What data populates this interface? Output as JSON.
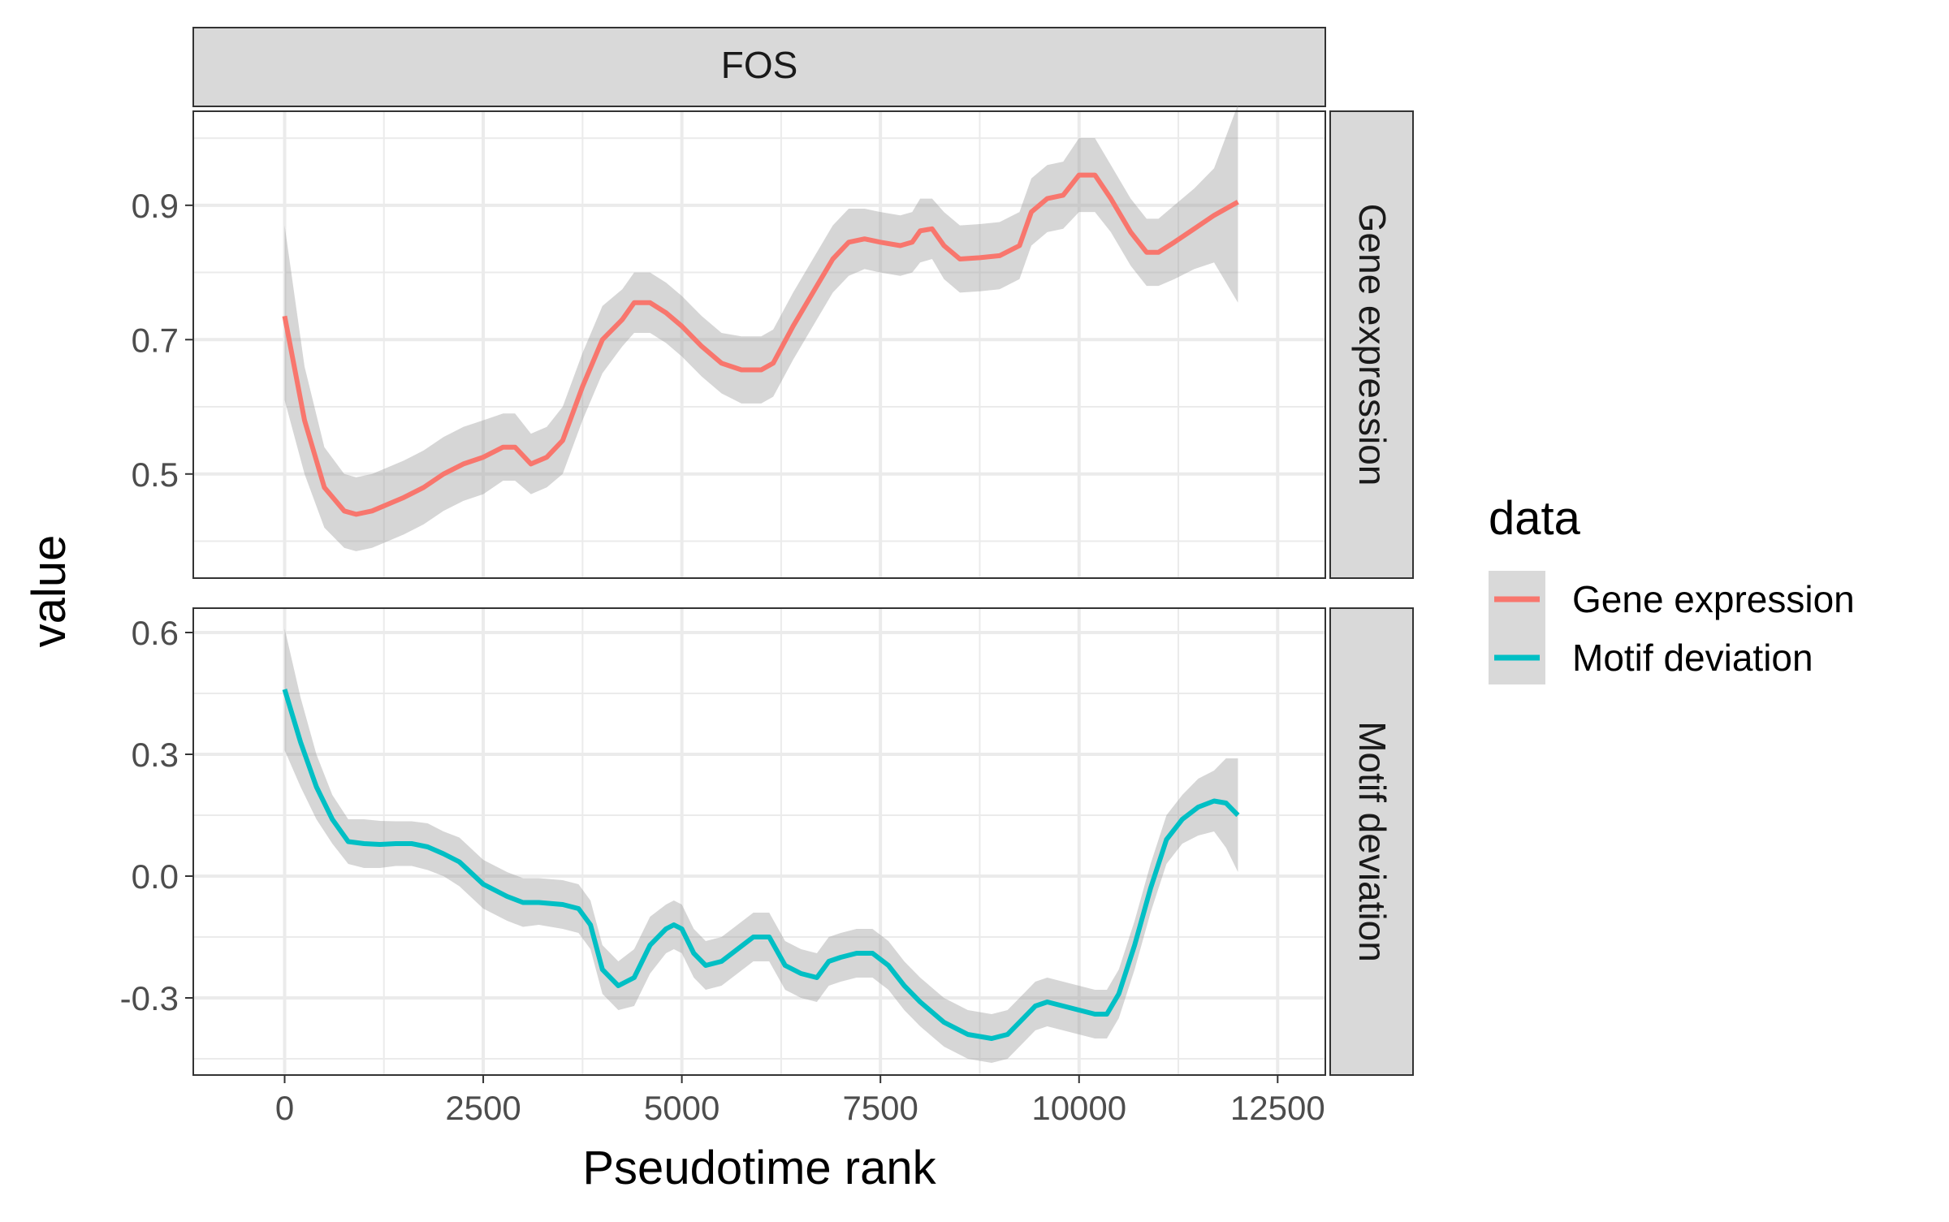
{
  "chart_data": {
    "type": "line",
    "facet_title": "FOS",
    "xlabel": "Pseudotime rank",
    "ylabel": "value",
    "xlim": [
      -1150,
      13100
    ],
    "x_ticks": [
      0,
      2500,
      5000,
      7500,
      10000,
      12500
    ],
    "x_tick_labels": [
      "0",
      "2500",
      "5000",
      "7500",
      "10000",
      "12500"
    ],
    "grid": true,
    "legend": {
      "title": "data",
      "position": "right",
      "entries": [
        "Gene expression",
        "Motif deviation"
      ]
    },
    "colors": {
      "Gene expression": "#F8766D",
      "Motif deviation": "#00BFC4",
      "ribbon": "#999999",
      "strip": "#D9D9D9",
      "grid": "#EBEBEB"
    },
    "panels": [
      {
        "strip_label": "Gene expression",
        "ylim": [
          0.345,
          1.04
        ],
        "y_ticks": [
          0.5,
          0.7,
          0.9
        ],
        "y_tick_labels": [
          "0.5",
          "0.7",
          "0.9"
        ],
        "y_minor": [
          0.4,
          0.6,
          0.8,
          1.0
        ],
        "series": [
          {
            "name": "Gene expression",
            "x": [
              0,
              250,
              500,
              750,
              900,
              1100,
              1300,
              1500,
              1750,
              2000,
              2250,
              2500,
              2750,
              2900,
              3100,
              3300,
              3500,
              3750,
              4000,
              4250,
              4400,
              4600,
              4800,
              5000,
              5250,
              5500,
              5750,
              6000,
              6150,
              6400,
              6650,
              6900,
              7100,
              7300,
              7500,
              7750,
              7900,
              8000,
              8150,
              8300,
              8500,
              8750,
              9000,
              9250,
              9400,
              9600,
              9800,
              10000,
              10200,
              10400,
              10650,
              10850,
              11000,
              11200,
              11450,
              11700,
              12000
            ],
            "y": [
              0.735,
              0.58,
              0.48,
              0.445,
              0.44,
              0.445,
              0.455,
              0.465,
              0.48,
              0.5,
              0.515,
              0.525,
              0.54,
              0.54,
              0.515,
              0.525,
              0.55,
              0.63,
              0.7,
              0.73,
              0.755,
              0.755,
              0.74,
              0.72,
              0.69,
              0.665,
              0.655,
              0.655,
              0.665,
              0.72,
              0.77,
              0.82,
              0.845,
              0.85,
              0.845,
              0.84,
              0.845,
              0.862,
              0.865,
              0.84,
              0.82,
              0.822,
              0.825,
              0.84,
              0.89,
              0.91,
              0.915,
              0.945,
              0.945,
              0.91,
              0.86,
              0.83,
              0.83,
              0.845,
              0.865,
              0.885,
              0.905
            ],
            "lower": [
              0.61,
              0.5,
              0.42,
              0.39,
              0.385,
              0.39,
              0.4,
              0.41,
              0.425,
              0.445,
              0.46,
              0.47,
              0.49,
              0.49,
              0.47,
              0.48,
              0.5,
              0.58,
              0.65,
              0.69,
              0.71,
              0.71,
              0.695,
              0.675,
              0.645,
              0.62,
              0.605,
              0.605,
              0.615,
              0.67,
              0.72,
              0.77,
              0.795,
              0.805,
              0.8,
              0.795,
              0.8,
              0.815,
              0.82,
              0.79,
              0.77,
              0.772,
              0.775,
              0.79,
              0.84,
              0.86,
              0.865,
              0.89,
              0.89,
              0.86,
              0.81,
              0.78,
              0.78,
              0.79,
              0.805,
              0.815,
              0.755
            ],
            "upper": [
              0.87,
              0.66,
              0.54,
              0.5,
              0.495,
              0.5,
              0.51,
              0.52,
              0.535,
              0.555,
              0.57,
              0.58,
              0.59,
              0.59,
              0.56,
              0.57,
              0.6,
              0.68,
              0.75,
              0.775,
              0.8,
              0.8,
              0.785,
              0.765,
              0.735,
              0.71,
              0.705,
              0.705,
              0.715,
              0.77,
              0.82,
              0.87,
              0.895,
              0.895,
              0.89,
              0.885,
              0.89,
              0.91,
              0.91,
              0.89,
              0.87,
              0.872,
              0.875,
              0.89,
              0.94,
              0.96,
              0.965,
              1.0,
              1.0,
              0.96,
              0.91,
              0.88,
              0.88,
              0.9,
              0.925,
              0.955,
              1.05
            ]
          }
        ]
      },
      {
        "strip_label": "Motif deviation",
        "ylim": [
          -0.49,
          0.66
        ],
        "y_ticks": [
          -0.3,
          0.0,
          0.3,
          0.6
        ],
        "y_tick_labels": [
          "-0.3",
          "0.0",
          "0.3",
          "0.6"
        ],
        "y_minor": [
          -0.45,
          -0.15,
          0.15,
          0.45
        ],
        "series": [
          {
            "name": "Motif deviation",
            "x": [
              0,
              200,
              400,
              600,
              800,
              1000,
              1200,
              1400,
              1600,
              1800,
              2000,
              2200,
              2500,
              2800,
              3000,
              3200,
              3500,
              3700,
              3850,
              4000,
              4200,
              4400,
              4600,
              4800,
              4900,
              5000,
              5150,
              5300,
              5500,
              5700,
              5900,
              6100,
              6300,
              6500,
              6700,
              6850,
              7000,
              7200,
              7400,
              7600,
              7800,
              8000,
              8300,
              8600,
              8900,
              9100,
              9300,
              9450,
              9600,
              9800,
              10000,
              10200,
              10350,
              10500,
              10700,
              10900,
              11100,
              11300,
              11500,
              11700,
              11850,
              12000
            ],
            "y": [
              0.46,
              0.33,
              0.22,
              0.14,
              0.085,
              0.08,
              0.078,
              0.08,
              0.08,
              0.072,
              0.055,
              0.035,
              -0.02,
              -0.05,
              -0.065,
              -0.065,
              -0.07,
              -0.08,
              -0.12,
              -0.23,
              -0.27,
              -0.25,
              -0.17,
              -0.13,
              -0.12,
              -0.13,
              -0.19,
              -0.22,
              -0.21,
              -0.18,
              -0.15,
              -0.15,
              -0.22,
              -0.24,
              -0.25,
              -0.21,
              -0.2,
              -0.19,
              -0.19,
              -0.22,
              -0.27,
              -0.31,
              -0.36,
              -0.39,
              -0.4,
              -0.39,
              -0.35,
              -0.32,
              -0.31,
              -0.32,
              -0.33,
              -0.34,
              -0.34,
              -0.29,
              -0.17,
              -0.03,
              0.09,
              0.14,
              0.17,
              0.185,
              0.18,
              0.15
            ],
            "lower": [
              0.31,
              0.22,
              0.14,
              0.08,
              0.03,
              0.02,
              0.02,
              0.025,
              0.025,
              0.015,
              0.0,
              -0.025,
              -0.08,
              -0.11,
              -0.125,
              -0.12,
              -0.13,
              -0.14,
              -0.18,
              -0.29,
              -0.33,
              -0.32,
              -0.24,
              -0.19,
              -0.18,
              -0.19,
              -0.25,
              -0.28,
              -0.27,
              -0.24,
              -0.21,
              -0.21,
              -0.28,
              -0.3,
              -0.31,
              -0.27,
              -0.26,
              -0.25,
              -0.25,
              -0.28,
              -0.33,
              -0.37,
              -0.42,
              -0.45,
              -0.46,
              -0.45,
              -0.41,
              -0.38,
              -0.37,
              -0.38,
              -0.39,
              -0.4,
              -0.4,
              -0.35,
              -0.23,
              -0.09,
              0.03,
              0.08,
              0.1,
              0.11,
              0.07,
              0.01
            ],
            "upper": [
              0.61,
              0.44,
              0.3,
              0.2,
              0.14,
              0.14,
              0.136,
              0.135,
              0.135,
              0.13,
              0.11,
              0.095,
              0.04,
              0.01,
              -0.005,
              -0.005,
              -0.01,
              -0.02,
              -0.06,
              -0.17,
              -0.21,
              -0.18,
              -0.1,
              -0.07,
              -0.06,
              -0.07,
              -0.13,
              -0.16,
              -0.15,
              -0.12,
              -0.09,
              -0.09,
              -0.16,
              -0.18,
              -0.19,
              -0.15,
              -0.14,
              -0.13,
              -0.13,
              -0.16,
              -0.21,
              -0.25,
              -0.3,
              -0.33,
              -0.34,
              -0.33,
              -0.29,
              -0.26,
              -0.25,
              -0.26,
              -0.27,
              -0.28,
              -0.28,
              -0.23,
              -0.11,
              0.03,
              0.15,
              0.2,
              0.24,
              0.26,
              0.29,
              0.29
            ]
          }
        ]
      }
    ]
  }
}
